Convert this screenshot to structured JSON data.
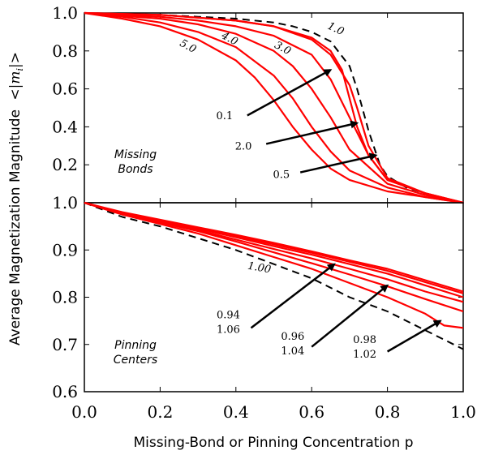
{
  "chart_data": {
    "type": "line",
    "ylabel": "Average Magnetization Magnitude",
    "ylabel_math": "<|m",
    "ylabel_math_sub": "i",
    "ylabel_math_end": "|>",
    "xlabel": "Missing-Bond or Pinning Concentration p",
    "x_ticks": [
      "0.0",
      "0.2",
      "0.4",
      "0.6",
      "0.8",
      "1.0"
    ],
    "panels": [
      {
        "name": "missing-bonds",
        "note_line1": "Missing",
        "note_line2": "Bonds",
        "xlim": [
          0,
          1.0
        ],
        "ylim": [
          0,
          1.0
        ],
        "y_ticks": [
          {
            "value": 1.0,
            "label": "1.0"
          },
          {
            "value": 0.8,
            "label": "0.8"
          },
          {
            "value": 0.6,
            "label": "0.6"
          },
          {
            "value": 0.4,
            "label": "0.4"
          },
          {
            "value": 0.2,
            "label": "0.2"
          }
        ],
        "series": [
          {
            "name": "1.0",
            "style": "dashed",
            "color": "#000000",
            "x": [
              0,
              0.1,
              0.2,
              0.3,
              0.4,
              0.5,
              0.55,
              0.6,
              0.65,
              0.7,
              0.72,
              0.75,
              0.78,
              0.8,
              0.85,
              0.9,
              0.95,
              1.0
            ],
            "y": [
              1.0,
              0.995,
              0.99,
              0.98,
              0.97,
              0.95,
              0.93,
              0.9,
              0.85,
              0.72,
              0.6,
              0.38,
              0.2,
              0.14,
              0.08,
              0.05,
              0.02,
              0.0
            ]
          },
          {
            "name": "5.0",
            "style": "solid",
            "color": "#ff0000",
            "x": [
              0,
              0.1,
              0.2,
              0.3,
              0.4,
              0.45,
              0.5,
              0.55,
              0.6,
              0.65,
              0.7,
              0.8,
              0.9,
              1.0
            ],
            "y": [
              1.0,
              0.97,
              0.93,
              0.86,
              0.75,
              0.66,
              0.54,
              0.4,
              0.28,
              0.18,
              0.12,
              0.06,
              0.03,
              0.0
            ]
          },
          {
            "name": "4.0",
            "style": "solid",
            "color": "#ff0000",
            "x": [
              0,
              0.1,
              0.2,
              0.3,
              0.4,
              0.5,
              0.55,
              0.6,
              0.65,
              0.7,
              0.8,
              0.9,
              1.0
            ],
            "y": [
              1.0,
              0.98,
              0.95,
              0.9,
              0.82,
              0.67,
              0.55,
              0.4,
              0.27,
              0.17,
              0.08,
              0.03,
              0.0
            ]
          },
          {
            "name": "3.0",
            "style": "solid",
            "color": "#ff0000",
            "x": [
              0,
              0.1,
              0.2,
              0.3,
              0.4,
              0.5,
              0.55,
              0.6,
              0.65,
              0.7,
              0.8,
              0.9,
              1.0
            ],
            "y": [
              1.0,
              0.985,
              0.97,
              0.94,
              0.89,
              0.8,
              0.72,
              0.6,
              0.45,
              0.28,
              0.1,
              0.04,
              0.0
            ]
          },
          {
            "name": "2.0",
            "style": "solid",
            "color": "#ff0000",
            "x": [
              0,
              0.1,
              0.2,
              0.3,
              0.4,
              0.5,
              0.6,
              0.65,
              0.7,
              0.75,
              0.8,
              0.9,
              1.0
            ],
            "y": [
              1.0,
              0.99,
              0.98,
              0.96,
              0.93,
              0.88,
              0.78,
              0.65,
              0.45,
              0.25,
              0.12,
              0.05,
              0.0
            ]
          },
          {
            "name": "0.1",
            "style": "solid",
            "color": "#ff0000",
            "x": [
              0,
              0.1,
              0.2,
              0.3,
              0.4,
              0.5,
              0.6,
              0.65,
              0.68,
              0.7,
              0.72,
              0.75,
              0.8,
              0.9,
              1.0
            ],
            "y": [
              1.0,
              0.995,
              0.99,
              0.975,
              0.96,
              0.93,
              0.87,
              0.8,
              0.7,
              0.55,
              0.4,
              0.25,
              0.12,
              0.05,
              0.0
            ]
          },
          {
            "name": "0.5",
            "style": "solid",
            "color": "#ff0000",
            "x": [
              0,
              0.1,
              0.2,
              0.3,
              0.4,
              0.5,
              0.6,
              0.65,
              0.7,
              0.72,
              0.75,
              0.8,
              0.9,
              1.0
            ],
            "y": [
              1.0,
              0.995,
              0.99,
              0.975,
              0.96,
              0.93,
              0.86,
              0.78,
              0.62,
              0.5,
              0.3,
              0.13,
              0.05,
              0.0
            ]
          }
        ],
        "curve_labels": [
          {
            "text": "1.0",
            "x": 0.64,
            "y": 0.92,
            "rotate": 25
          },
          {
            "text": "3.0",
            "x": 0.5,
            "y": 0.82,
            "rotate": 28
          },
          {
            "text": "4.0",
            "x": 0.36,
            "y": 0.87,
            "rotate": 28
          },
          {
            "text": "5.0",
            "x": 0.25,
            "y": 0.83,
            "rotate": 28
          }
        ],
        "annotations": [
          {
            "text": "0.1",
            "text_x": 0.37,
            "text_y": 0.44,
            "from": [
              0.43,
              0.46
            ],
            "to": [
              0.65,
              0.7
            ]
          },
          {
            "text": "2.0",
            "text_x": 0.42,
            "text_y": 0.28,
            "from": [
              0.48,
              0.31
            ],
            "to": [
              0.72,
              0.42
            ]
          },
          {
            "text": "0.5",
            "text_x": 0.52,
            "text_y": 0.13,
            "from": [
              0.57,
              0.16
            ],
            "to": [
              0.77,
              0.25
            ]
          }
        ]
      },
      {
        "name": "pinning-centers",
        "note_line1": "Pinning",
        "note_line2": "Centers",
        "xlim": [
          0,
          1.0
        ],
        "ylim": [
          0.6,
          1.0
        ],
        "y_ticks": [
          {
            "value": 1.0,
            "label": "1.0"
          },
          {
            "value": 0.9,
            "label": "0.9"
          },
          {
            "value": 0.8,
            "label": "0.8"
          },
          {
            "value": 0.7,
            "label": "0.7"
          },
          {
            "value": 0.6,
            "label": "0.6"
          }
        ],
        "series": [
          {
            "name": "1.00",
            "style": "dashed",
            "color": "#000000",
            "x": [
              0,
              0.1,
              0.2,
              0.3,
              0.4,
              0.5,
              0.6,
              0.7,
              0.8,
              0.9,
              1.0
            ],
            "y": [
              1.0,
              0.97,
              0.95,
              0.925,
              0.9,
              0.87,
              0.84,
              0.8,
              0.77,
              0.73,
              0.69
            ]
          },
          {
            "name": "0.98",
            "style": "solid",
            "color": "#ff0000",
            "x": [
              0,
              0.1,
              0.2,
              0.3,
              0.4,
              0.5,
              0.6,
              0.7,
              0.8,
              0.9,
              0.95,
              1.0
            ],
            "y": [
              1.0,
              0.975,
              0.955,
              0.935,
              0.91,
              0.885,
              0.86,
              0.83,
              0.8,
              0.765,
              0.74,
              0.735
            ]
          },
          {
            "name": "0.96",
            "style": "solid",
            "color": "#ff0000",
            "x": [
              0,
              0.1,
              0.2,
              0.3,
              0.4,
              0.5,
              0.6,
              0.7,
              0.8,
              0.9,
              1.0
            ],
            "y": [
              1.0,
              0.976,
              0.958,
              0.94,
              0.918,
              0.895,
              0.872,
              0.848,
              0.823,
              0.796,
              0.77
            ]
          },
          {
            "name": "0.94",
            "style": "solid",
            "color": "#ff0000",
            "x": [
              0,
              0.1,
              0.2,
              0.3,
              0.4,
              0.5,
              0.6,
              0.7,
              0.8,
              0.9,
              1.0
            ],
            "y": [
              1.0,
              0.977,
              0.96,
              0.942,
              0.922,
              0.902,
              0.882,
              0.86,
              0.838,
              0.812,
              0.79
            ]
          },
          {
            "name": "1.02",
            "style": "solid",
            "color": "#ff0000",
            "x": [
              0,
              0.1,
              0.2,
              0.3,
              0.4,
              0.5,
              0.6,
              0.7,
              0.8,
              0.9,
              1.0
            ],
            "y": [
              1.0,
              0.978,
              0.962,
              0.945,
              0.927,
              0.908,
              0.89,
              0.87,
              0.85,
              0.825,
              0.8
            ]
          },
          {
            "name": "1.04",
            "style": "solid",
            "color": "#ff0000",
            "x": [
              0,
              0.1,
              0.2,
              0.3,
              0.4,
              0.5,
              0.6,
              0.7,
              0.8,
              0.9,
              1.0
            ],
            "y": [
              1.0,
              0.979,
              0.963,
              0.947,
              0.93,
              0.912,
              0.894,
              0.875,
              0.856,
              0.832,
              0.808
            ]
          },
          {
            "name": "1.06",
            "style": "solid",
            "color": "#ff0000",
            "x": [
              0,
              0.1,
              0.2,
              0.3,
              0.4,
              0.5,
              0.6,
              0.7,
              0.8,
              0.9,
              1.0
            ],
            "y": [
              1.0,
              0.98,
              0.964,
              0.948,
              0.932,
              0.915,
              0.897,
              0.878,
              0.86,
              0.836,
              0.812
            ]
          }
        ],
        "curve_labels": [
          {
            "text": "1.00",
            "x": 0.43,
            "y": 0.86,
            "rotate": 10
          }
        ],
        "annotations": [
          {
            "text": "0.94",
            "text2": "1.06",
            "text_x": 0.38,
            "text_y": 0.755,
            "from": [
              0.44,
              0.735
            ],
            "to": [
              0.66,
              0.87
            ]
          },
          {
            "text": "0.96",
            "text2": "1.04",
            "text_x": 0.55,
            "text_y": 0.71,
            "from": [
              0.6,
              0.695
            ],
            "to": [
              0.8,
              0.825
            ]
          },
          {
            "text": "0.98",
            "text2": "1.02",
            "text_x": 0.74,
            "text_y": 0.703,
            "from": [
              0.8,
              0.685
            ],
            "to": [
              0.94,
              0.75
            ]
          }
        ]
      }
    ]
  }
}
